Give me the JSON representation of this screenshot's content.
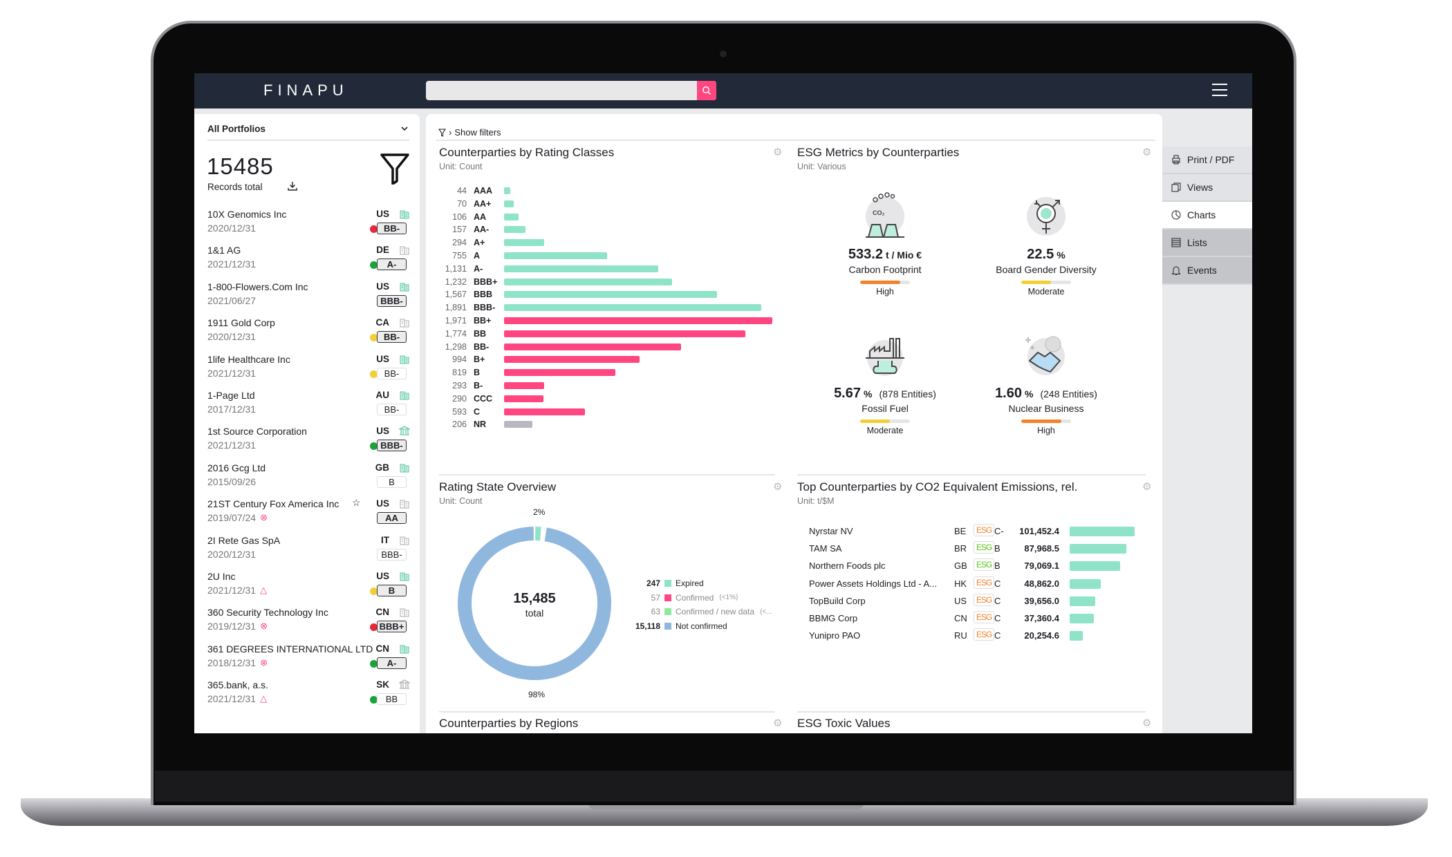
{
  "app": {
    "logo": "FINAPU",
    "search": {
      "placeholder": "",
      "value": ""
    }
  },
  "colors": {
    "accent": "#ff4681",
    "teal": "#8ee3c8",
    "header": "#222a3a",
    "gray_bar": "#b8b8c0",
    "donut_blue": "#90b8de",
    "orange": "#f4822a",
    "yellow": "#f2cf35",
    "green_dot": "#1aa33a",
    "red_dot": "#e8283a"
  },
  "sidebar_right": {
    "items": [
      {
        "label": "Print / PDF",
        "icon": "printer-icon",
        "state": "normal"
      },
      {
        "label": "Views",
        "icon": "views-icon",
        "state": "normal"
      },
      {
        "label": "Charts",
        "icon": "pie-chart-icon",
        "state": "active"
      },
      {
        "label": "Lists",
        "icon": "list-icon",
        "state": "dark"
      },
      {
        "label": "Events",
        "icon": "bell-icon",
        "state": "dark"
      }
    ]
  },
  "portfolio": {
    "selector": "All Portfolios",
    "records_count": "15485",
    "records_label": "Records total",
    "items": [
      {
        "name": "10X Genomics Inc",
        "date": "2020/12/31",
        "country": "US",
        "entity_icon": "building",
        "entity_color": "teal",
        "dot": "red",
        "badge": "BB-",
        "badge_style": "bold",
        "status": ""
      },
      {
        "name": "1&1 AG",
        "date": "2021/12/31",
        "country": "DE",
        "entity_icon": "building",
        "entity_color": "gray",
        "dot": "green",
        "badge": "A-",
        "badge_style": "bold",
        "status": ""
      },
      {
        "name": "1-800-Flowers.Com Inc",
        "date": "2021/06/27",
        "country": "US",
        "entity_icon": "building",
        "entity_color": "teal",
        "dot": "",
        "badge": "BBB-",
        "badge_style": "bold",
        "status": ""
      },
      {
        "name": "1911 Gold Corp",
        "date": "2020/12/31",
        "country": "CA",
        "entity_icon": "building",
        "entity_color": "gray",
        "dot": "yellow",
        "badge": "BB-",
        "badge_style": "bold",
        "status": ""
      },
      {
        "name": "1life Healthcare Inc",
        "date": "2021/12/31",
        "country": "US",
        "entity_icon": "building",
        "entity_color": "teal",
        "dot": "yellow",
        "badge": "BB-",
        "badge_style": "light",
        "status": ""
      },
      {
        "name": "1-Page Ltd",
        "date": "2017/12/31",
        "country": "AU",
        "entity_icon": "building",
        "entity_color": "teal",
        "dot": "",
        "badge": "BB-",
        "badge_style": "light",
        "status": ""
      },
      {
        "name": "1st Source Corporation",
        "date": "2021/12/31",
        "country": "US",
        "entity_icon": "bank",
        "entity_color": "teal",
        "dot": "green",
        "badge": "BBB-",
        "badge_style": "bold",
        "status": ""
      },
      {
        "name": "2016 Gcg Ltd",
        "date": "2015/09/26",
        "country": "GB",
        "entity_icon": "building",
        "entity_color": "teal",
        "dot": "",
        "badge": "B",
        "badge_style": "light",
        "status": ""
      },
      {
        "name": "21ST Century Fox America Inc",
        "date": "2019/07/24",
        "country": "US",
        "entity_icon": "building",
        "entity_color": "gray",
        "dot": "",
        "badge": "AA",
        "badge_style": "bold",
        "status": "x-circle",
        "star": true
      },
      {
        "name": "2I Rete Gas SpA",
        "date": "2020/12/31",
        "country": "IT",
        "entity_icon": "building",
        "entity_color": "gray",
        "dot": "",
        "badge": "BBB-",
        "badge_style": "light",
        "status": ""
      },
      {
        "name": "2U Inc",
        "date": "2021/12/31",
        "country": "US",
        "entity_icon": "building",
        "entity_color": "teal",
        "dot": "yellow",
        "badge": "B",
        "badge_style": "bold",
        "status": "warning"
      },
      {
        "name": "360 Security Technology Inc",
        "date": "2019/12/31",
        "country": "CN",
        "entity_icon": "building",
        "entity_color": "gray",
        "dot": "red",
        "badge": "BBB+",
        "badge_style": "bold",
        "status": "x-circle"
      },
      {
        "name": "361 DEGREES INTERNATIONAL LTD",
        "date": "2018/12/31",
        "country": "CN",
        "entity_icon": "building",
        "entity_color": "teal",
        "dot": "green",
        "badge": "A-",
        "badge_style": "bold",
        "status": "x-circle"
      },
      {
        "name": "365.bank, a.s.",
        "date": "2021/12/31",
        "country": "SK",
        "entity_icon": "bank",
        "entity_color": "gray",
        "dot": "green",
        "badge": "BB",
        "badge_style": "light",
        "status": "warning"
      }
    ]
  },
  "main": {
    "filters_label": "Show filters",
    "rating_chart": {
      "title": "Counterparties by Rating Classes",
      "unit": "Unit: Count"
    },
    "esg_metrics": {
      "title": "ESG Metrics by Counterparties",
      "unit": "Unit: Various",
      "metrics": [
        {
          "value": "533.2",
          "unit": "t / Mio €",
          "entities": "",
          "label": "Carbon Footprint",
          "level": "High",
          "level_fraction": 0.8,
          "level_color": "#f4822a",
          "icon": "carbon-footprint-icon"
        },
        {
          "value": "22.5",
          "unit": "%",
          "entities": "",
          "label": "Board Gender Diversity",
          "level": "Moderate",
          "level_fraction": 0.6,
          "level_color": "#f2cf35",
          "icon": "gender-diversity-icon"
        },
        {
          "value": "5.67",
          "unit": "%",
          "entities": "(878 Entities)",
          "label": "Fossil Fuel",
          "level": "Moderate",
          "level_fraction": 0.6,
          "level_color": "#f2cf35",
          "icon": "fossil-fuel-factory-icon"
        },
        {
          "value": "1.60",
          "unit": "%",
          "entities": "(248 Entities)",
          "label": "Nuclear Business",
          "level": "High",
          "level_fraction": 0.8,
          "level_color": "#f4822a",
          "icon": "nuclear-handshake-icon"
        }
      ]
    },
    "rating_state": {
      "title": "Rating State Overview",
      "unit": "Unit: Count",
      "total": "15,485",
      "total_label": "total",
      "pct_top": "2%",
      "pct_bottom": "98%",
      "legend": [
        {
          "count": "247",
          "label": "Expired",
          "note": "",
          "color": "#8ee3c8",
          "bold": true
        },
        {
          "count": "57",
          "label": "Confirmed",
          "note": "(<1%)",
          "color": "#ff4681",
          "bold": false
        },
        {
          "count": "63",
          "label": "Confirmed / new data",
          "note": "(<...",
          "color": "#8ee89a",
          "bold": false
        },
        {
          "count": "15,118",
          "label": "Not confirmed",
          "note": "",
          "color": "#90b8de",
          "bold": true
        }
      ]
    },
    "co2": {
      "title": "Top Counterparties by CO2 Equivalent Emissions, rel.",
      "unit": "Unit: t/$M",
      "esg_label": "ESG"
    },
    "regions": {
      "title": "Counterparties by Regions"
    },
    "toxic": {
      "title": "ESG Toxic Values"
    }
  },
  "chart_data": [
    {
      "type": "bar",
      "orientation": "horizontal",
      "title": "Counterparties by Rating Classes",
      "unit": "Count",
      "categories": [
        "AAA",
        "AA+",
        "AA",
        "AA-",
        "A+",
        "A",
        "A-",
        "BBB+",
        "BBB",
        "BBB-",
        "BB+",
        "BB",
        "BB-",
        "B+",
        "B",
        "B-",
        "CCC",
        "C",
        "NR"
      ],
      "values": [
        44,
        70,
        106,
        157,
        294,
        755,
        1131,
        1232,
        1567,
        1891,
        1971,
        1774,
        1298,
        994,
        819,
        293,
        290,
        593,
        206
      ],
      "value_labels": [
        "44",
        "70",
        "106",
        "157",
        "294",
        "755",
        "1,131",
        "1,232",
        "1,567",
        "1,891",
        "1,971",
        "1,774",
        "1,298",
        "994",
        "819",
        "293",
        "290",
        "593",
        "206"
      ],
      "colors": [
        "teal",
        "teal",
        "teal",
        "teal",
        "teal",
        "teal",
        "teal",
        "teal",
        "teal",
        "teal",
        "pink",
        "pink",
        "pink",
        "pink",
        "pink",
        "pink",
        "pink",
        "pink",
        "gray"
      ]
    },
    {
      "type": "pie",
      "variant": "donut",
      "title": "Rating State Overview",
      "unit": "Count",
      "categories": [
        "Expired",
        "Confirmed",
        "Confirmed / new data",
        "Not confirmed"
      ],
      "values": [
        247,
        57,
        63,
        15118
      ]
    },
    {
      "type": "bar",
      "orientation": "horizontal",
      "title": "Top Counterparties by CO2 Equivalent Emissions, rel.",
      "unit": "t/$M",
      "rows": [
        {
          "name": "Nyrstar NV",
          "country": "BE",
          "esg_color": "orange",
          "rating": "C-",
          "value": 101452.4,
          "label": "101,452.4"
        },
        {
          "name": "TAM SA",
          "country": "BR",
          "esg_color": "green",
          "rating": "B",
          "value": 87968.5,
          "label": "87,968.5"
        },
        {
          "name": "Northern Foods plc",
          "country": "GB",
          "esg_color": "green",
          "rating": "B",
          "value": 79069.1,
          "label": "79,069.1"
        },
        {
          "name": "Power Assets Holdings Ltd - A...",
          "country": "HK",
          "esg_color": "orange",
          "rating": "C",
          "value": 48862.0,
          "label": "48,862.0"
        },
        {
          "name": "TopBuild Corp",
          "country": "US",
          "esg_color": "orange",
          "rating": "C",
          "value": 39656.0,
          "label": "39,656.0"
        },
        {
          "name": "BBMG Corp",
          "country": "CN",
          "esg_color": "orange",
          "rating": "C",
          "value": 37360.4,
          "label": "37,360.4"
        },
        {
          "name": "Yunipro PAO",
          "country": "RU",
          "esg_color": "orange",
          "rating": "C",
          "value": 20254.6,
          "label": "20,254.6"
        }
      ]
    }
  ]
}
